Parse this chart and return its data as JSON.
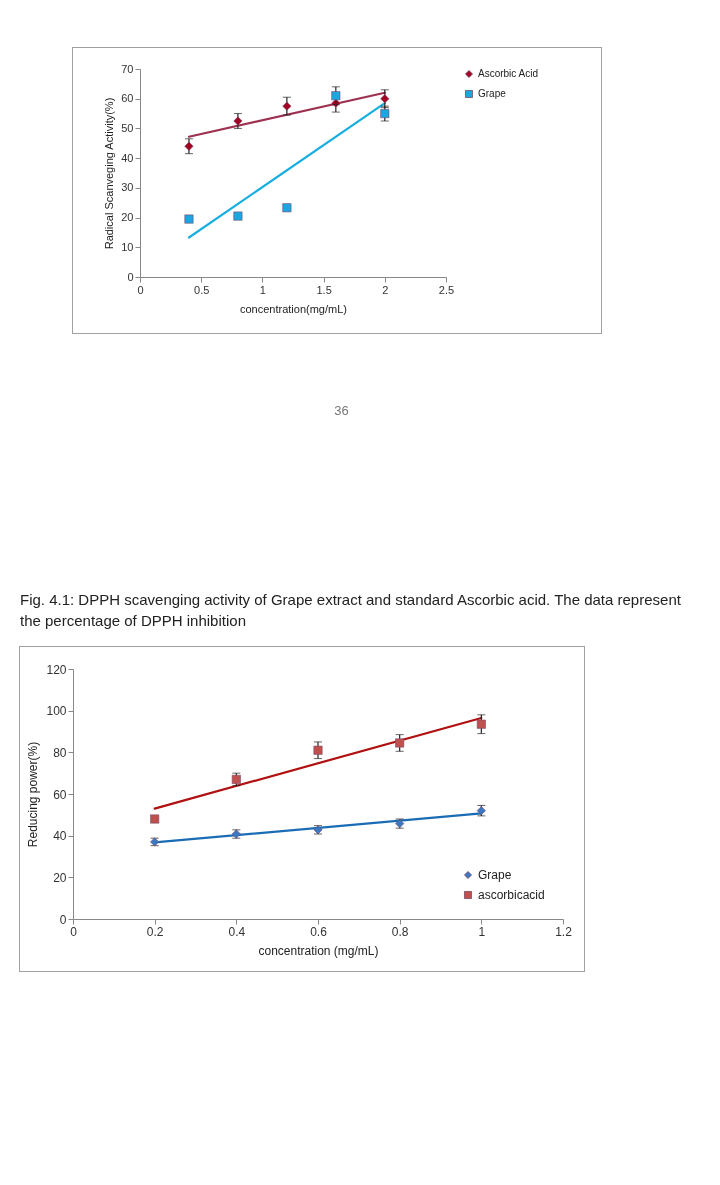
{
  "chart_data": [
    {
      "type": "scatter",
      "xlabel": "concentration(mg/mL)",
      "ylabel": "Radical Scanveging Activity(%)",
      "xlim": [
        0,
        2.5
      ],
      "xticks": [
        0,
        0.5,
        1,
        1.5,
        2,
        2.5
      ],
      "ylim": [
        0,
        70
      ],
      "yticks": [
        0,
        10,
        20,
        30,
        40,
        50,
        60,
        70
      ],
      "legend": "right",
      "annotations": [
        "36",
        "Fig. 4.1: DPPH scavenging activity of Grape extract and standard Ascorbic acid. The data represent the percentage of DPPH inhibition"
      ],
      "x": [
        0.4,
        0.8,
        1.2,
        1.6,
        2.0
      ],
      "series": [
        {
          "type": "line",
          "color": "#9e3050",
          "x": [
            0.4,
            2.0
          ],
          "values": [
            47.2,
            62
          ]
        },
        {
          "type": "line",
          "color": "#17aee0",
          "x": [
            0.4,
            2.0
          ],
          "values": [
            13.3,
            58.5
          ]
        },
        {
          "name": "Ascorbic Acid",
          "color": "#a50021",
          "marker": "diamond",
          "values": [
            44,
            52.5,
            57.5,
            58.5,
            60
          ],
          "errors": [
            2.5,
            2.5,
            3,
            3,
            3
          ]
        },
        {
          "name": "Grape",
          "color": "#1aa7e0",
          "marker": "square",
          "values": [
            19.5,
            20.5,
            23.3,
            61,
            55
          ],
          "errors": [
            null,
            null,
            null,
            3,
            2.5
          ]
        }
      ]
    },
    {
      "type": "scatter",
      "xlabel": "concentration (mg/mL)",
      "ylabel": "Reducing power(%)",
      "xlim": [
        0,
        1.2
      ],
      "xticks": [
        0,
        0.2,
        0.4,
        0.6,
        0.8,
        1,
        1.2
      ],
      "ylim": [
        0,
        120
      ],
      "yticks": [
        0,
        20,
        40,
        60,
        80,
        100,
        120
      ],
      "legend": "bottom right",
      "x": [
        0.2,
        0.4,
        0.6,
        0.8,
        1.0
      ],
      "series": [
        {
          "type": "line",
          "color": "#1a6db5",
          "x": [
            0.2,
            1.0
          ],
          "values": [
            36.8,
            50.7
          ]
        },
        {
          "type": "line",
          "color": "#b01010",
          "x": [
            0.2,
            1.0
          ],
          "values": [
            53,
            96.5
          ]
        },
        {
          "name": "Grape",
          "color": "#3b78c2",
          "marker": "diamond",
          "values": [
            37,
            40.8,
            42.8,
            45.8,
            52
          ],
          "errors": [
            1.8,
            2,
            2,
            2.2,
            2.5
          ]
        },
        {
          "name": "ascorbicacid",
          "color": "#c0504d",
          "marker": "square",
          "values": [
            48,
            67,
            81,
            84.5,
            93.5
          ],
          "errors": [
            null,
            3,
            4,
            4,
            4.5
          ]
        }
      ]
    }
  ]
}
